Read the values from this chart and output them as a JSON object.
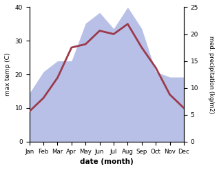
{
  "months": [
    "Jan",
    "Feb",
    "Mar",
    "Apr",
    "May",
    "Jun",
    "Jul",
    "Aug",
    "Sep",
    "Oct",
    "Nov",
    "Dec"
  ],
  "max_temp": [
    9,
    13,
    19,
    28,
    29,
    33,
    32,
    35,
    28,
    22,
    14,
    10
  ],
  "precipitation": [
    9,
    13,
    15,
    15,
    22,
    24,
    21,
    25,
    21,
    13,
    12,
    12
  ],
  "temp_color": "#9b3a4a",
  "precip_fill_color": "#b8c0e8",
  "xlabel": "date (month)",
  "ylabel_left": "max temp (C)",
  "ylabel_right": "med. precipitation (kg/m2)",
  "ylim_left": [
    0,
    40
  ],
  "ylim_right": [
    0,
    25
  ],
  "yticks_left": [
    0,
    10,
    20,
    30,
    40
  ],
  "yticks_right": [
    0,
    5,
    10,
    15,
    20,
    25
  ],
  "background_color": "#ffffff",
  "line_width": 2.0
}
